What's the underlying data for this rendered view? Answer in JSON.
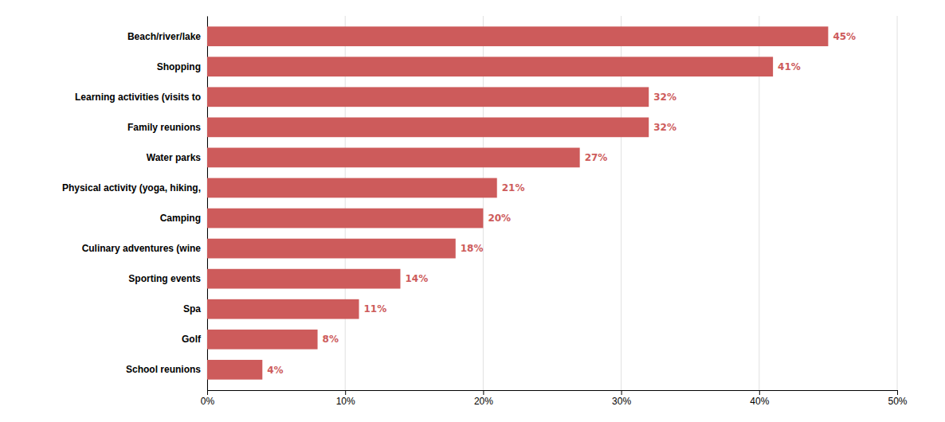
{
  "chart_data": {
    "type": "bar",
    "orientation": "horizontal",
    "categories": [
      "Beach/river/lake",
      "Shopping",
      "Learning activities (visits to",
      "Family reunions",
      "Water parks",
      "Physical activity (yoga, hiking,",
      "Camping",
      "Culinary adventures (wine",
      "Sporting events",
      "Spa",
      "Golf",
      "School reunions"
    ],
    "values": [
      45,
      41,
      32,
      32,
      27,
      21,
      20,
      18,
      14,
      11,
      8,
      4
    ],
    "value_labels": [
      "45%",
      "41%",
      "32%",
      "32%",
      "27%",
      "21%",
      "20%",
      "18%",
      "14%",
      "11%",
      "8%",
      "4%"
    ],
    "data_labels": true,
    "color": "#cd5b5b",
    "xlim": [
      0,
      50
    ],
    "xticks": [
      {
        "value": 0,
        "label": "0%"
      },
      {
        "value": 10,
        "label": "10%"
      },
      {
        "value": 20,
        "label": "20%"
      },
      {
        "value": 30,
        "label": "30%"
      },
      {
        "value": 40,
        "label": "40%"
      },
      {
        "value": 50,
        "label": "50%"
      }
    ],
    "grid": true
  }
}
